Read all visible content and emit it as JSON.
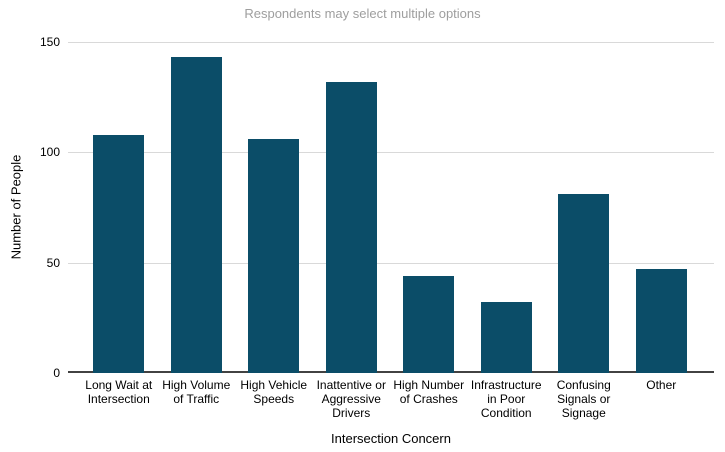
{
  "chart_data": {
    "type": "bar",
    "title": "Respondents may select multiple options",
    "xlabel": "Intersection Concern",
    "ylabel": "Number of People",
    "categories": [
      "Long Wait at Intersection",
      "High Volume of Traffic",
      "High Vehicle Speeds",
      "Inattentive or Aggressive Drivers",
      "High Number of Crashes",
      "Infrastructure in Poor Condition",
      "Confusing Signals or Signage",
      "Other"
    ],
    "values": [
      108,
      143,
      106,
      132,
      44,
      32,
      81,
      47
    ],
    "ylim": [
      0,
      150
    ],
    "yticks": [
      0,
      50,
      100,
      150
    ],
    "grid": true,
    "legend_position": "none",
    "colors": {
      "bar": "#0b4d68",
      "title_text": "#9e9e9e",
      "axis_text": "#000000",
      "gridline": "#d9d9d9",
      "axis_line": "#424242",
      "background": "#ffffff"
    }
  }
}
